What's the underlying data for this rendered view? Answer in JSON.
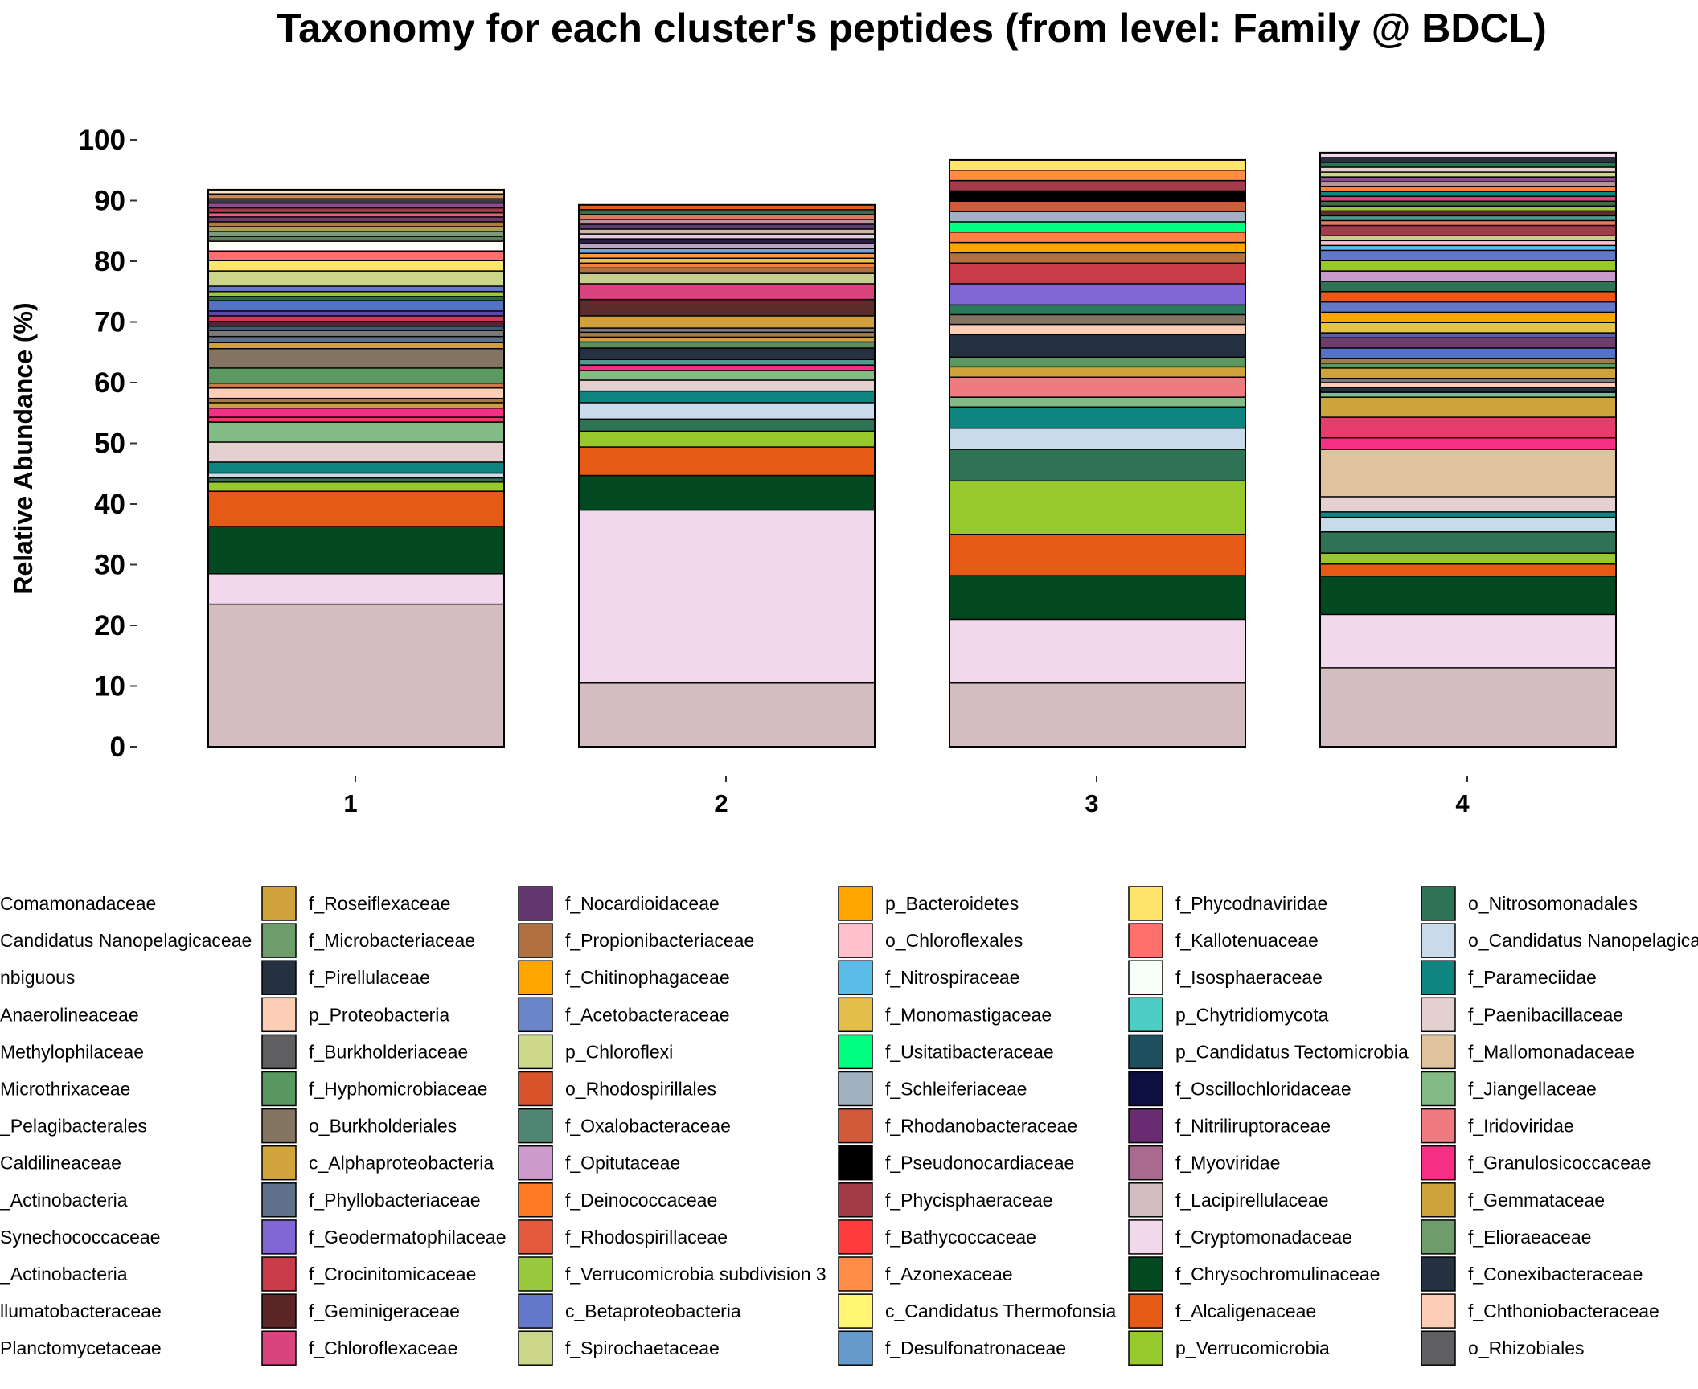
{
  "chart_data": {
    "type": "bar",
    "stacked": true,
    "title": "Taxonomy for each cluster's peptides (from level: Family @ BDCL)",
    "ylabel": "Relative Abundance (%)",
    "xlabel": "",
    "ylim": [
      0,
      100
    ],
    "yticks": [
      "0",
      "10",
      "20",
      "30",
      "40",
      "50",
      "60",
      "70",
      "80",
      "90",
      "100"
    ],
    "categories": [
      "1",
      "2",
      "3",
      "4"
    ],
    "stacks": [
      [
        {
          "c": "#D4BDC0",
          "v": 23.5
        },
        {
          "c": "#F2D8EC",
          "v": 5.0
        },
        {
          "c": "#024922",
          "v": 7.8
        },
        {
          "c": "#E55A14",
          "v": 5.8
        },
        {
          "c": "#97C92C",
          "v": 1.5
        },
        {
          "c": "#2F7355",
          "v": 0.7
        },
        {
          "c": "#C9DAEA",
          "v": 0.8
        },
        {
          "c": "#0F8580",
          "v": 1.8
        },
        {
          "c": "#E5D0D0",
          "v": 3.3
        },
        {
          "c": "#84BA84",
          "v": 3.3
        },
        {
          "c": "#E53C6C",
          "v": 0.8
        },
        {
          "c": "#F52F84",
          "v": 1.5
        },
        {
          "c": "#CC9F3F",
          "v": 0.9
        },
        {
          "c": "#A37D45",
          "v": 0.7
        },
        {
          "c": "#FECDB5",
          "v": 1.7
        },
        {
          "c": "#CF7747",
          "v": 0.8
        },
        {
          "c": "#5C9960",
          "v": 2.5
        },
        {
          "c": "#847563",
          "v": 3.2
        },
        {
          "c": "#D1A038",
          "v": 1.0
        },
        {
          "c": "#5F7089",
          "v": 1.0
        },
        {
          "c": "#7B7B7B",
          "v": 1.0
        },
        {
          "c": "#3C5A76",
          "v": 0.7
        },
        {
          "c": "#5F1F33",
          "v": 0.8
        },
        {
          "c": "#C93B5B",
          "v": 0.9
        },
        {
          "c": "#5F46A8",
          "v": 0.8
        },
        {
          "c": "#5472C4",
          "v": 1.7
        },
        {
          "c": "#2C6B40",
          "v": 0.7
        },
        {
          "c": "#9CC63A",
          "v": 0.8
        },
        {
          "c": "#6378C8",
          "v": 0.9
        },
        {
          "c": "#CBD68A",
          "v": 2.5
        },
        {
          "c": "#FFE56B",
          "v": 1.7
        },
        {
          "c": "#FF706C",
          "v": 1.6
        },
        {
          "c": "#FDFFF8",
          "v": 1.6
        },
        {
          "c": "#5E7E5A",
          "v": 0.8
        },
        {
          "c": "#7A9A7A",
          "v": 0.8
        },
        {
          "c": "#A99B64",
          "v": 0.8
        },
        {
          "c": "#B07B3A",
          "v": 0.8
        },
        {
          "c": "#6D3B6D",
          "v": 0.8
        },
        {
          "c": "#E2627E",
          "v": 0.7
        },
        {
          "c": "#A33B4A",
          "v": 0.8
        },
        {
          "c": "#8E4B8E",
          "v": 0.8
        },
        {
          "c": "#3A3A46",
          "v": 0.7
        },
        {
          "c": "#C98A5A",
          "v": 0.8
        },
        {
          "c": "#FBE3C4",
          "v": 0.7
        }
      ],
      [
        {
          "c": "#D4BDC0",
          "v": 10.5
        },
        {
          "c": "#F2D8EC",
          "v": 28.5
        },
        {
          "c": "#024922",
          "v": 5.7
        },
        {
          "c": "#E55A14",
          "v": 4.7
        },
        {
          "c": "#97C92C",
          "v": 2.6
        },
        {
          "c": "#2F7355",
          "v": 2.0
        },
        {
          "c": "#C9DAEA",
          "v": 2.7
        },
        {
          "c": "#0F8580",
          "v": 1.9
        },
        {
          "c": "#E5D0D0",
          "v": 1.8
        },
        {
          "c": "#84BA84",
          "v": 1.6
        },
        {
          "c": "#F52F84",
          "v": 0.9
        },
        {
          "c": "#4F9A8E",
          "v": 0.9
        },
        {
          "c": "#253041",
          "v": 1.9
        },
        {
          "c": "#5E8F5A",
          "v": 1.0
        },
        {
          "c": "#CC9F3F",
          "v": 0.8
        },
        {
          "c": "#A37D45",
          "v": 0.8
        },
        {
          "c": "#7B7B7B",
          "v": 0.7
        },
        {
          "c": "#D0A03C",
          "v": 2.0
        },
        {
          "c": "#5C2C2C",
          "v": 2.7
        },
        {
          "c": "#D9437E",
          "v": 2.6
        },
        {
          "c": "#C7CC8F",
          "v": 1.7
        },
        {
          "c": "#B07040",
          "v": 0.9
        },
        {
          "c": "#F08040",
          "v": 0.8
        },
        {
          "c": "#E3C44B",
          "v": 0.8
        },
        {
          "c": "#FF9A3C",
          "v": 0.8
        },
        {
          "c": "#7DA0D4",
          "v": 0.8
        },
        {
          "c": "#B8A6C0",
          "v": 0.8
        },
        {
          "c": "#2A1E40",
          "v": 0.8
        },
        {
          "c": "#E0CDE2",
          "v": 0.8
        },
        {
          "c": "#D3B5A5",
          "v": 0.8
        },
        {
          "c": "#5C3F70",
          "v": 0.8
        },
        {
          "c": "#B39598",
          "v": 0.8
        },
        {
          "c": "#E07A5C",
          "v": 0.8
        },
        {
          "c": "#3E6B4A",
          "v": 0.8
        },
        {
          "c": "#E55A14",
          "v": 0.8
        }
      ],
      [
        {
          "c": "#D4BDC0",
          "v": 10.5
        },
        {
          "c": "#F2D8EC",
          "v": 10.5
        },
        {
          "c": "#024922",
          "v": 7.2
        },
        {
          "c": "#E55A14",
          "v": 6.8
        },
        {
          "c": "#97C92C",
          "v": 8.8
        },
        {
          "c": "#2F7355",
          "v": 5.2
        },
        {
          "c": "#C9DAEA",
          "v": 3.5
        },
        {
          "c": "#0F8580",
          "v": 3.5
        },
        {
          "c": "#84BA84",
          "v": 1.6
        },
        {
          "c": "#EF7A7F",
          "v": 3.3
        },
        {
          "c": "#CFA23C",
          "v": 1.7
        },
        {
          "c": "#5C9960",
          "v": 1.6
        },
        {
          "c": "#253041",
          "v": 3.7
        },
        {
          "c": "#FECDB5",
          "v": 1.7
        },
        {
          "c": "#847563",
          "v": 1.6
        },
        {
          "c": "#2C7A5A",
          "v": 1.6
        },
        {
          "c": "#8166D5",
          "v": 3.5
        },
        {
          "c": "#C93B46",
          "v": 3.4
        },
        {
          "c": "#B07040",
          "v": 1.7
        },
        {
          "c": "#FFA500",
          "v": 1.7
        },
        {
          "c": "#FF8040",
          "v": 1.7
        },
        {
          "c": "#00FF80",
          "v": 1.7
        },
        {
          "c": "#A0B2C4",
          "v": 1.7
        },
        {
          "c": "#D3593B",
          "v": 1.7
        },
        {
          "c": "#000000",
          "v": 1.7
        },
        {
          "c": "#A33B4A",
          "v": 1.7
        },
        {
          "c": "#FF8C47",
          "v": 1.7
        },
        {
          "c": "#FFE56B",
          "v": 1.7
        }
      ],
      [
        {
          "c": "#D4BDC0",
          "v": 13.0
        },
        {
          "c": "#F2D8EC",
          "v": 8.8
        },
        {
          "c": "#024922",
          "v": 6.3
        },
        {
          "c": "#E55A14",
          "v": 2.0
        },
        {
          "c": "#97C92C",
          "v": 1.8
        },
        {
          "c": "#2F7355",
          "v": 3.5
        },
        {
          "c": "#C9DAEA",
          "v": 2.4
        },
        {
          "c": "#0F8580",
          "v": 0.9
        },
        {
          "c": "#E5D0D0",
          "v": 2.5
        },
        {
          "c": "#DFC39E",
          "v": 7.8
        },
        {
          "c": "#F52F84",
          "v": 1.9
        },
        {
          "c": "#E53C6C",
          "v": 3.4
        },
        {
          "c": "#CDA33C",
          "v": 3.3
        },
        {
          "c": "#84BA84",
          "v": 0.8
        },
        {
          "c": "#253041",
          "v": 0.8
        },
        {
          "c": "#FECDB5",
          "v": 0.8
        },
        {
          "c": "#7B7B7B",
          "v": 0.7
        },
        {
          "c": "#CFA23C",
          "v": 1.7
        },
        {
          "c": "#5C9960",
          "v": 0.8
        },
        {
          "c": "#A37D45",
          "v": 0.8
        },
        {
          "c": "#5472C4",
          "v": 1.7
        },
        {
          "c": "#6D3B6D",
          "v": 1.7
        },
        {
          "c": "#5F5FB0",
          "v": 0.8
        },
        {
          "c": "#E3C44B",
          "v": 1.7
        },
        {
          "c": "#FFA500",
          "v": 1.7
        },
        {
          "c": "#6378C8",
          "v": 1.7
        },
        {
          "c": "#E55A14",
          "v": 1.7
        },
        {
          "c": "#2F7355",
          "v": 1.7
        },
        {
          "c": "#C99BCC",
          "v": 1.7
        },
        {
          "c": "#97C92C",
          "v": 1.7
        },
        {
          "c": "#6378C8",
          "v": 1.7
        },
        {
          "c": "#5BBCE9",
          "v": 0.8
        },
        {
          "c": "#FFC0CB",
          "v": 0.8
        },
        {
          "c": "#C7CC8F",
          "v": 0.8
        },
        {
          "c": "#A33B4A",
          "v": 1.7
        },
        {
          "c": "#E07A5C",
          "v": 0.8
        },
        {
          "c": "#4F9A8E",
          "v": 0.8
        },
        {
          "c": "#5C2C2C",
          "v": 0.8
        },
        {
          "c": "#9CC63A",
          "v": 0.8
        },
        {
          "c": "#3E6B4A",
          "v": 0.8
        },
        {
          "c": "#D9437E",
          "v": 0.8
        },
        {
          "c": "#0F8580",
          "v": 0.8
        },
        {
          "c": "#FF8040",
          "v": 0.8
        },
        {
          "c": "#B39598",
          "v": 0.8
        },
        {
          "c": "#8E4B8E",
          "v": 0.8
        },
        {
          "c": "#CBD68A",
          "v": 0.8
        },
        {
          "c": "#E5D0D0",
          "v": 0.8
        },
        {
          "c": "#2F7355",
          "v": 0.8
        },
        {
          "c": "#253041",
          "v": 0.8
        },
        {
          "c": "#F2D8EC",
          "v": 0.8
        }
      ]
    ],
    "legend": {
      "columns": [
        [
          {
            "label": "Comamonadaceae",
            "color": null
          },
          {
            "label": "Candidatus Nanopelagicaceae",
            "color": null
          },
          {
            "label": "nbiguous",
            "color": null
          },
          {
            "label": "Anaerolineaceae",
            "color": null
          },
          {
            "label": "Methylophilaceae",
            "color": null
          },
          {
            "label": "Microthrixaceae",
            "color": null
          },
          {
            "label": "_Pelagibacterales",
            "color": null
          },
          {
            "label": "Caldilineaceae",
            "color": null
          },
          {
            "label": "_Actinobacteria",
            "color": null
          },
          {
            "label": "Synechococcaceae",
            "color": null
          },
          {
            "label": "_Actinobacteria",
            "color": null
          },
          {
            "label": "llumatobacteraceae",
            "color": null
          },
          {
            "label": "Planctomycetaceae",
            "color": null
          }
        ],
        [
          {
            "label": "f_Roseiflexaceae",
            "color": "#CFA23C"
          },
          {
            "label": "f_Microbacteriaceae",
            "color": "#6E9D6C"
          },
          {
            "label": "f_Pirellulaceae",
            "color": "#253041"
          },
          {
            "label": "p_Proteobacteria",
            "color": "#FECDB5"
          },
          {
            "label": "f_Burkholderiaceae",
            "color": "#5F5F62"
          },
          {
            "label": "f_Hyphomicrobiaceae",
            "color": "#599960"
          },
          {
            "label": "o_Burkholderiales",
            "color": "#847563"
          },
          {
            "label": "c_Alphaproteobacteria",
            "color": "#D1A53C"
          },
          {
            "label": "f_Phyllobacteriaceae",
            "color": "#5F7089"
          },
          {
            "label": "f_Geodermatophilaceae",
            "color": "#8166D5"
          },
          {
            "label": "f_Crocinitomicaceae",
            "color": "#C93B46"
          },
          {
            "label": "f_Geminigeraceae",
            "color": "#5C2626"
          },
          {
            "label": "f_Chloroflexaceae",
            "color": "#D9437E"
          }
        ],
        [
          {
            "label": "f_Nocardioidaceae",
            "color": "#643770"
          },
          {
            "label": "f_Propionibacteriaceae",
            "color": "#B07040"
          },
          {
            "label": "f_Chitinophagaceae",
            "color": "#FFA500"
          },
          {
            "label": "f_Acetobacteraceae",
            "color": "#6A86C8"
          },
          {
            "label": "p_Chloroflexi",
            "color": "#CFD98C"
          },
          {
            "label": "o_Rhodospirillales",
            "color": "#D9542A"
          },
          {
            "label": "f_Oxalobacteraceae",
            "color": "#4F8573"
          },
          {
            "label": "f_Opitutaceae",
            "color": "#CC9BCC"
          },
          {
            "label": "f_Deinococcaceae",
            "color": "#FF7A25"
          },
          {
            "label": "f_Rhodospirillaceae",
            "color": "#E55A3A"
          },
          {
            "label": "f_Verrucomicrobia subdivision 3",
            "color": "#99C93C"
          },
          {
            "label": "c_Betaproteobacteria",
            "color": "#6378C8"
          },
          {
            "label": "f_Spirochaetaceae",
            "color": "#CBD68A"
          }
        ],
        [
          {
            "label": "p_Bacteroidetes",
            "color": "#FFA500"
          },
          {
            "label": "o_Chloroflexales",
            "color": "#FFC0CB"
          },
          {
            "label": "f_Nitrospiraceae",
            "color": "#5BBCE9"
          },
          {
            "label": "f_Monomastigaceae",
            "color": "#E3BE4B"
          },
          {
            "label": "f_Usitatibacteraceae",
            "color": "#00FF80"
          },
          {
            "label": "f_Schleiferiaceae",
            "color": "#A0B2C0"
          },
          {
            "label": "f_Rhodanobacteraceae",
            "color": "#D3593B"
          },
          {
            "label": "f_Pseudonocardiaceae",
            "color": "#000000"
          },
          {
            "label": "f_Phycisphaeraceae",
            "color": "#A33B46"
          },
          {
            "label": "f_Bathycoccaceae",
            "color": "#FF3C3C"
          },
          {
            "label": "f_Azonexaceae",
            "color": "#FF8C47"
          },
          {
            "label": "c_Candidatus Thermofonsia",
            "color": "#FFF570"
          },
          {
            "label": "f_Desulfonatronaceae",
            "color": "#6699CC"
          }
        ],
        [
          {
            "label": "f_Phycodnaviridae",
            "color": "#FFE56B"
          },
          {
            "label": "f_Kallotenuaceae",
            "color": "#FF706C"
          },
          {
            "label": "f_Isosphaeraceae",
            "color": "#F8FFF8"
          },
          {
            "label": "p_Chytridiomycota",
            "color": "#4ECDC4"
          },
          {
            "label": "p_Candidatus Tectomicrobia",
            "color": "#1E4F5F"
          },
          {
            "label": "f_Oscillochloridaceae",
            "color": "#0D0F40"
          },
          {
            "label": "f_Nitriliruptoraceae",
            "color": "#6A2C70"
          },
          {
            "label": "f_Myoviridae",
            "color": "#A86B8E"
          },
          {
            "label": "f_Lacipirellulaceae",
            "color": "#D4BDC0"
          },
          {
            "label": "f_Cryptomonadaceae",
            "color": "#F2D8EC"
          },
          {
            "label": "f_Chrysochromulinaceae",
            "color": "#024922"
          },
          {
            "label": "f_Alcaligenaceae",
            "color": "#E55A14"
          },
          {
            "label": "p_Verrucomicrobia",
            "color": "#97C92C"
          }
        ],
        [
          {
            "label": "o_Nitrosomonadales",
            "color": "#2F7355"
          },
          {
            "label": "o_Candidatus Nanopelagica",
            "color": "#C9DAEA"
          },
          {
            "label": "f_Parameciidae",
            "color": "#0F8580"
          },
          {
            "label": "f_Paenibacillaceae",
            "color": "#E5D0D0"
          },
          {
            "label": "f_Mallomonadaceae",
            "color": "#DFC39E"
          },
          {
            "label": "f_Jiangellaceae",
            "color": "#84BA84"
          },
          {
            "label": "f_Iridoviridae",
            "color": "#EF7A7F"
          },
          {
            "label": "f_Granulosicoccaceae",
            "color": "#F52F84"
          },
          {
            "label": "f_Gemmataceae",
            "color": "#CDA33C"
          },
          {
            "label": "f_Elioraeaceae",
            "color": "#6E9D6C"
          },
          {
            "label": "f_Conexibacteraceae",
            "color": "#253041"
          },
          {
            "label": "f_Chthoniobacteraceae",
            "color": "#FECDB5"
          },
          {
            "label": "o_Rhizobiales",
            "color": "#5F5F62"
          }
        ]
      ]
    }
  }
}
